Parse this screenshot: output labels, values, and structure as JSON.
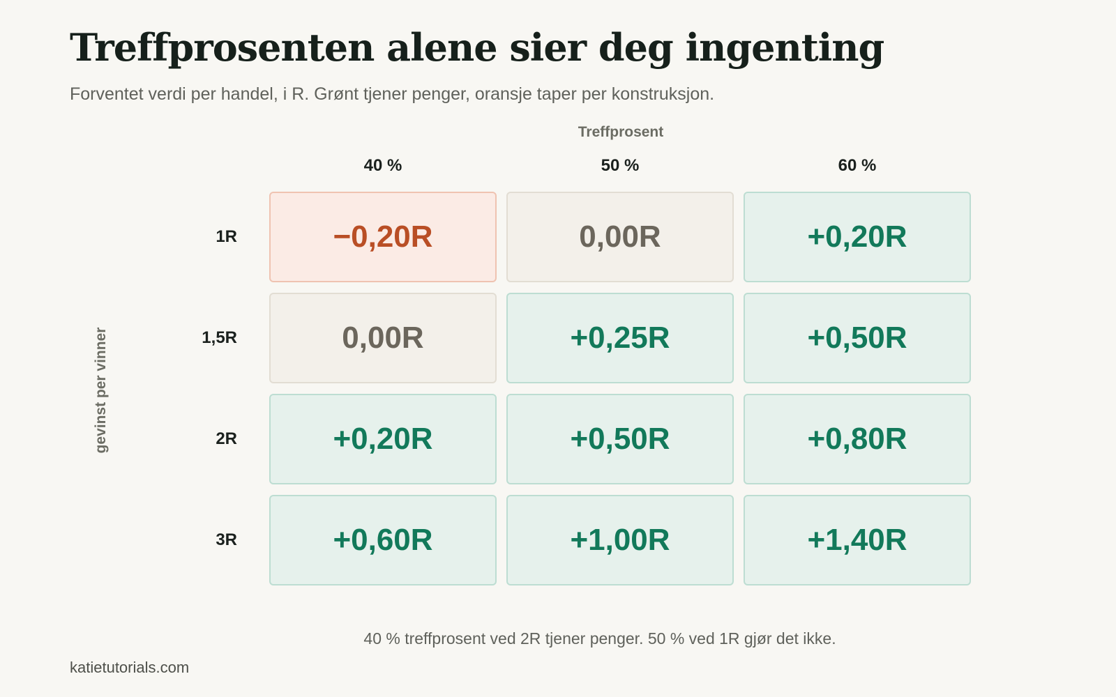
{
  "header": {
    "title": "Treffprosenten alene sier deg ingenting",
    "subtitle": "Forventet verdi per handel, i R. Grønt tjener penger, oransje taper per konstruksjon."
  },
  "chart_data": {
    "type": "heatmap",
    "xlabel": "Treffprosent",
    "ylabel": "gevinst per vinner",
    "x_categories": [
      "40 %",
      "50 %",
      "60 %"
    ],
    "y_categories": [
      "1R",
      "1,5R",
      "2R",
      "3R"
    ],
    "values": [
      [
        -0.2,
        0.0,
        0.2
      ],
      [
        0.0,
        0.25,
        0.5
      ],
      [
        0.2,
        0.5,
        0.8
      ],
      [
        0.6,
        1.0,
        1.4
      ]
    ],
    "labels": [
      [
        "−0,20R",
        "0,00R",
        "+0,20R"
      ],
      [
        "0,00R",
        "+0,25R",
        "+0,50R"
      ],
      [
        "+0,20R",
        "+0,50R",
        "+0,80R"
      ],
      [
        "+0,60R",
        "+1,00R",
        "+1,40R"
      ]
    ],
    "colors": {
      "positive_text": "#12795a",
      "positive_fill": "#e6f1ec",
      "neutral_text": "#6b665c",
      "neutral_fill": "#f3f0ea",
      "negative_text": "#b94e25",
      "negative_fill": "#fbebe5"
    }
  },
  "footer": {
    "caption": "40 % treffprosent ved 2R tjener penger. 50 % ved 1R gjør det ikke.",
    "source": "katietutorials.com"
  }
}
